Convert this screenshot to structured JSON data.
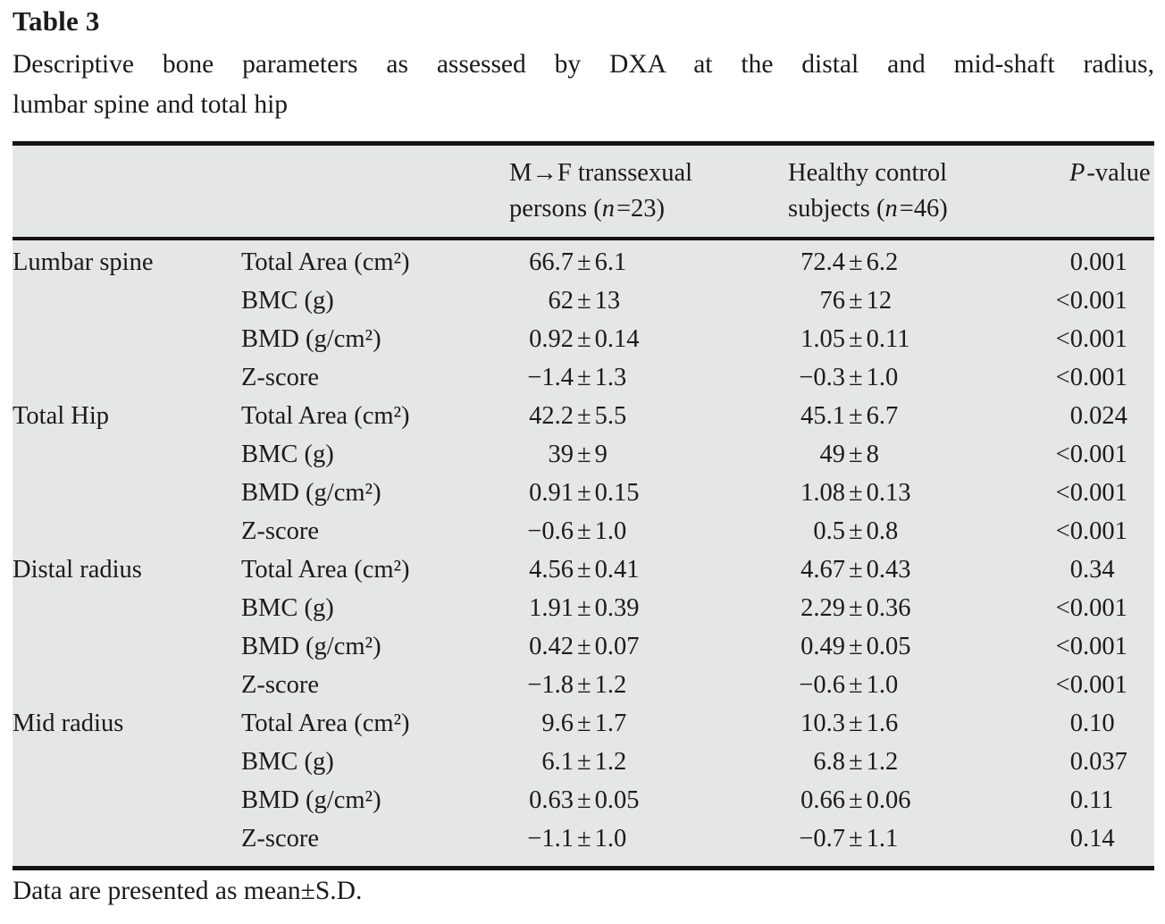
{
  "title": "Table 3",
  "caption": {
    "line1": "Descriptive bone parameters as assessed by DXA at the distal and mid-shaft radius,",
    "line2": "lumbar spine and total hip"
  },
  "pm_sign": "±",
  "footnote": "Data are presented as mean±S.D.",
  "colors": {
    "table_background": "#e5e6e6",
    "rule": "#161312",
    "text": "#1e1a19"
  },
  "table": {
    "col_headers": {
      "group1": {
        "line1": "M→F transsexual",
        "line2_pre": "persons (",
        "line2_var": "n",
        "line2_post": "=23)"
      },
      "group2": {
        "line1": "Healthy control",
        "line2_pre": "subjects (",
        "line2_var": "n",
        "line2_post": "=46)"
      },
      "pvalue": {
        "var": "P",
        "post": "-value"
      }
    },
    "rows": [
      {
        "region": "Lumbar spine",
        "param": "Total Area (cm²)",
        "mf": {
          "mean": "66.7",
          "sd": "6.1"
        },
        "hc": {
          "mean": "72.4",
          "sd": "6.2"
        },
        "p": "0.001"
      },
      {
        "region": "",
        "param": "BMC (g)",
        "mf": {
          "mean": "62",
          "sd": "13"
        },
        "hc": {
          "mean": "76",
          "sd": "12"
        },
        "p": "<0.001"
      },
      {
        "region": "",
        "param": "BMD (g/cm²)",
        "mf": {
          "mean": "0.92",
          "sd": "0.14"
        },
        "hc": {
          "mean": "1.05",
          "sd": "0.11"
        },
        "p": "<0.001"
      },
      {
        "region": "",
        "param": "Z-score",
        "mf": {
          "mean": "−1.4",
          "sd": "1.3"
        },
        "hc": {
          "mean": "−0.3",
          "sd": "1.0"
        },
        "p": "<0.001"
      },
      {
        "region": "Total Hip",
        "param": "Total Area (cm²)",
        "mf": {
          "mean": "42.2",
          "sd": "5.5"
        },
        "hc": {
          "mean": "45.1",
          "sd": "6.7"
        },
        "p": "0.024"
      },
      {
        "region": "",
        "param": "BMC (g)",
        "mf": {
          "mean": "39",
          "sd": "9"
        },
        "hc": {
          "mean": "49",
          "sd": "8"
        },
        "p": "<0.001"
      },
      {
        "region": "",
        "param": "BMD (g/cm²)",
        "mf": {
          "mean": "0.91",
          "sd": "0.15"
        },
        "hc": {
          "mean": "1.08",
          "sd": "0.13"
        },
        "p": "<0.001"
      },
      {
        "region": "",
        "param": "Z-score",
        "mf": {
          "mean": "−0.6",
          "sd": "1.0"
        },
        "hc": {
          "mean": "0.5",
          "sd": "0.8"
        },
        "p": "<0.001"
      },
      {
        "region": "Distal radius",
        "param": "Total Area (cm²)",
        "mf": {
          "mean": "4.56",
          "sd": "0.41"
        },
        "hc": {
          "mean": "4.67",
          "sd": "0.43"
        },
        "p": "0.34"
      },
      {
        "region": "",
        "param": "BMC (g)",
        "mf": {
          "mean": "1.91",
          "sd": "0.39"
        },
        "hc": {
          "mean": "2.29",
          "sd": "0.36"
        },
        "p": "<0.001"
      },
      {
        "region": "",
        "param": "BMD (g/cm²)",
        "mf": {
          "mean": "0.42",
          "sd": "0.07"
        },
        "hc": {
          "mean": "0.49",
          "sd": "0.05"
        },
        "p": "<0.001"
      },
      {
        "region": "",
        "param": "Z-score",
        "mf": {
          "mean": "−1.8",
          "sd": "1.2"
        },
        "hc": {
          "mean": "−0.6",
          "sd": "1.0"
        },
        "p": "<0.001"
      },
      {
        "region": "Mid radius",
        "param": "Total Area (cm²)",
        "mf": {
          "mean": "9.6",
          "sd": "1.7"
        },
        "hc": {
          "mean": "10.3",
          "sd": "1.6"
        },
        "p": "0.10"
      },
      {
        "region": "",
        "param": "BMC (g)",
        "mf": {
          "mean": "6.1",
          "sd": "1.2"
        },
        "hc": {
          "mean": "6.8",
          "sd": "1.2"
        },
        "p": "0.037"
      },
      {
        "region": "",
        "param": "BMD (g/cm²)",
        "mf": {
          "mean": "0.63",
          "sd": "0.05"
        },
        "hc": {
          "mean": "0.66",
          "sd": "0.06"
        },
        "p": "0.11"
      },
      {
        "region": "",
        "param": "Z-score",
        "mf": {
          "mean": "−1.1",
          "sd": "1.0"
        },
        "hc": {
          "mean": "−0.7",
          "sd": "1.1"
        },
        "p": "0.14"
      }
    ]
  }
}
